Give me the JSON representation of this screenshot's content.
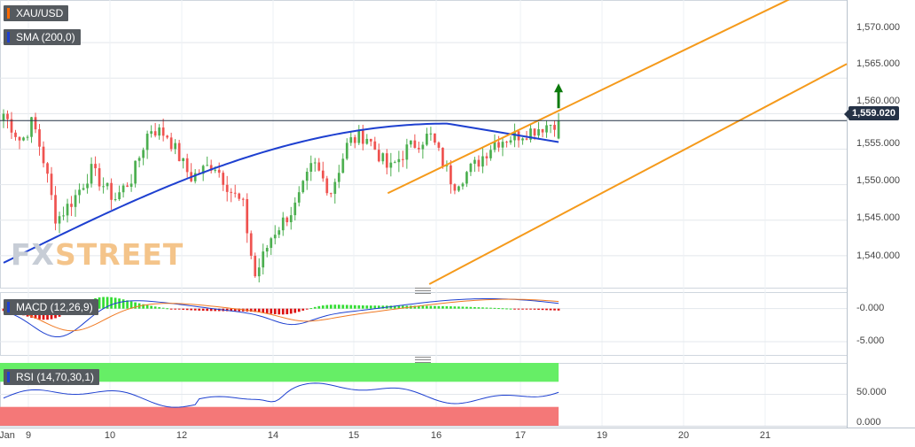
{
  "instrument": "XAU/USD",
  "watermark": {
    "part1": "FX",
    "part2": "STREET"
  },
  "current_price": "1,559.020",
  "colors": {
    "up": "#4caf50",
    "down": "#ef5350",
    "sma": "#1e40d0",
    "channel": "#f59a1b",
    "macd_line": "#1e40d0",
    "signal_line": "#f07a24",
    "hist_pos": "#33dd33",
    "hist_neg": "#dd1111",
    "rsi_line": "#1e40d0",
    "rsi_ob": "#66ee66",
    "rsi_os": "#f47878",
    "arrow": "#0c7a0c",
    "watermark1": "#c7cdd6",
    "watermark2": "#f4c48a"
  },
  "chart_data": [
    {
      "type": "candlestick",
      "title": "XAU/USD",
      "x_ticks": [
        "Jan",
        "9",
        "10",
        "12",
        "14",
        "15",
        "16",
        "17",
        "19",
        "20",
        "21"
      ],
      "y_ticks": [
        "1,540.000",
        "1,545.000",
        "1,550.000",
        "1,555.000",
        "1,560.000",
        "1,565.000",
        "1,570.000"
      ],
      "ylim": [
        1535.5,
        1576
      ],
      "bars": 140,
      "series": [
        {
          "name": "SMA (200,0)",
          "type": "line"
        }
      ],
      "channel": {
        "upper": [
          [
            0.458,
            1548.8
          ],
          [
            1.0,
            1580.0
          ]
        ],
        "lower": [
          [
            0.507,
            1536.0
          ],
          [
            1.0,
            1567.0
          ]
        ]
      },
      "last": 1559.02,
      "signal_arrow": "up"
    },
    {
      "type": "line",
      "title": "MACD (12,26,9)",
      "y_ticks": [
        "-0.000",
        "-5.000"
      ],
      "ylim": [
        -7.0,
        2.5
      ],
      "series": [
        {
          "name": "MACD"
        },
        {
          "name": "Signal"
        },
        {
          "name": "Histogram",
          "type": "bar"
        }
      ]
    },
    {
      "type": "line",
      "title": "RSI (14,70,30,1)",
      "y_ticks": [
        "50.000",
        "0.000"
      ],
      "ylim": [
        0,
        100
      ],
      "levels": [
        30,
        70
      ]
    }
  ]
}
